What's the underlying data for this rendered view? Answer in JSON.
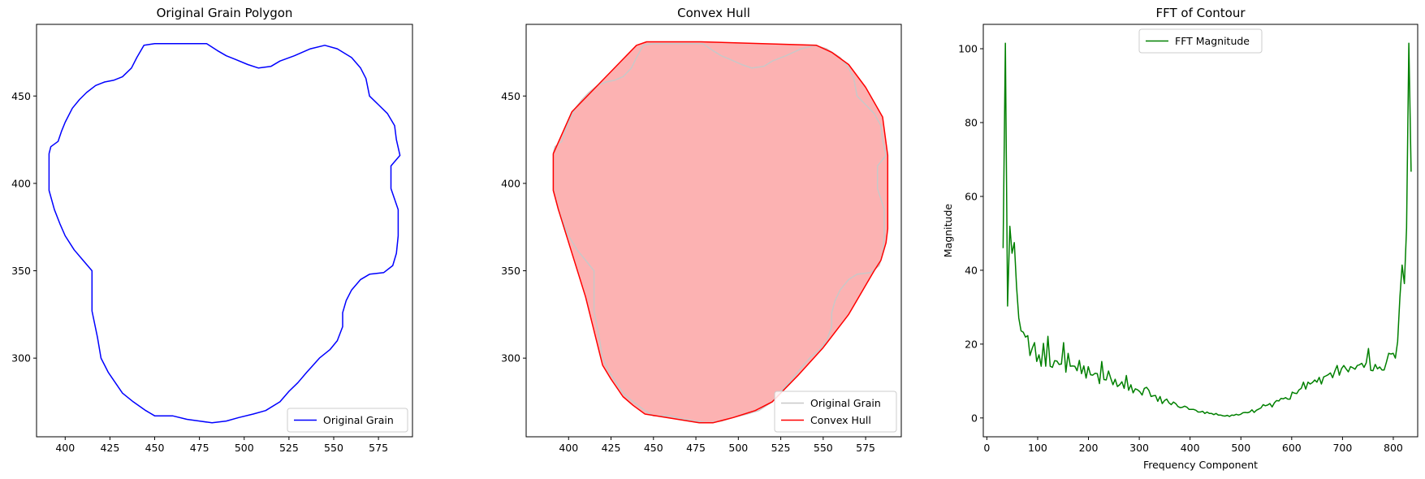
{
  "chart_data": [
    {
      "type": "line",
      "title": "Original Grain Polygon",
      "xlabel": "",
      "ylabel": "",
      "xlim": [
        384,
        594
      ],
      "ylim": [
        255,
        491
      ],
      "xticks": [
        400,
        425,
        450,
        475,
        500,
        525,
        550,
        575
      ],
      "yticks": [
        300,
        350,
        400,
        450
      ],
      "legend_position": "lower-right",
      "series": [
        {
          "name": "Original Grain",
          "color": "#0000ff",
          "points": [
            [
              391,
              417
            ],
            [
              391,
              396
            ],
            [
              394,
              385
            ],
            [
              397,
              377
            ],
            [
              400,
              370
            ],
            [
              405,
              362
            ],
            [
              410,
              356
            ],
            [
              415,
              350
            ],
            [
              415,
              327
            ],
            [
              418,
              312
            ],
            [
              420,
              300
            ],
            [
              424,
              292
            ],
            [
              428,
              286
            ],
            [
              432,
              280
            ],
            [
              438,
              275
            ],
            [
              445,
              270
            ],
            [
              450,
              267
            ],
            [
              460,
              267
            ],
            [
              468,
              265
            ],
            [
              475,
              264
            ],
            [
              482,
              263
            ],
            [
              490,
              264
            ],
            [
              497,
              266
            ],
            [
              505,
              268
            ],
            [
              512,
              270
            ],
            [
              520,
              275
            ],
            [
              525,
              281
            ],
            [
              530,
              286
            ],
            [
              535,
              292
            ],
            [
              542,
              300
            ],
            [
              548,
              305
            ],
            [
              552,
              310
            ],
            [
              555,
              318
            ],
            [
              555,
              326
            ],
            [
              557,
              333
            ],
            [
              560,
              339
            ],
            [
              565,
              345
            ],
            [
              570,
              348
            ],
            [
              578,
              349
            ],
            [
              583,
              353
            ],
            [
              585,
              360
            ],
            [
              586,
              370
            ],
            [
              586,
              385
            ],
            [
              582,
              397
            ],
            [
              582,
              410
            ],
            [
              587,
              416
            ],
            [
              585,
              425
            ],
            [
              584,
              433
            ],
            [
              580,
              440
            ],
            [
              575,
              445
            ],
            [
              570,
              450
            ],
            [
              568,
              460
            ],
            [
              565,
              466
            ],
            [
              560,
              472
            ],
            [
              552,
              477
            ],
            [
              545,
              479
            ],
            [
              537,
              477
            ],
            [
              528,
              473
            ],
            [
              520,
              470
            ],
            [
              515,
              467
            ],
            [
              508,
              466
            ],
            [
              502,
              468
            ],
            [
              495,
              471
            ],
            [
              490,
              473
            ],
            [
              485,
              476
            ],
            [
              479,
              480
            ],
            [
              470,
              480
            ],
            [
              460,
              480
            ],
            [
              450,
              480
            ],
            [
              444,
              479
            ],
            [
              440,
              472
            ],
            [
              437,
              466
            ],
            [
              432,
              461
            ],
            [
              427,
              459
            ],
            [
              422,
              458
            ],
            [
              417,
              456
            ],
            [
              412,
              452
            ],
            [
              408,
              448
            ],
            [
              404,
              443
            ],
            [
              400,
              435
            ],
            [
              398,
              430
            ],
            [
              396,
              424
            ],
            [
              392,
              421
            ],
            [
              391,
              417
            ]
          ]
        }
      ]
    },
    {
      "type": "line",
      "title": "Convex Hull",
      "xlabel": "",
      "ylabel": "",
      "xlim": [
        375,
        596
      ],
      "ylim": [
        255,
        491
      ],
      "xticks": [
        400,
        425,
        450,
        475,
        500,
        525,
        550,
        575
      ],
      "yticks": [
        300,
        350,
        400,
        450
      ],
      "legend_position": "lower-right",
      "hull_fill_color": "#fcb2b2",
      "series": [
        {
          "name": "Original Grain",
          "color": "#c8c8c8",
          "points": [
            [
              391,
              417
            ],
            [
              391,
              396
            ],
            [
              394,
              385
            ],
            [
              397,
              377
            ],
            [
              400,
              370
            ],
            [
              405,
              362
            ],
            [
              410,
              356
            ],
            [
              415,
              350
            ],
            [
              415,
              327
            ],
            [
              418,
              312
            ],
            [
              420,
              300
            ],
            [
              424,
              292
            ],
            [
              428,
              286
            ],
            [
              432,
              280
            ],
            [
              438,
              275
            ],
            [
              445,
              270
            ],
            [
              450,
              267
            ],
            [
              460,
              267
            ],
            [
              468,
              265
            ],
            [
              475,
              264
            ],
            [
              482,
              263
            ],
            [
              490,
              264
            ],
            [
              497,
              266
            ],
            [
              505,
              268
            ],
            [
              512,
              270
            ],
            [
              520,
              275
            ],
            [
              525,
              281
            ],
            [
              530,
              286
            ],
            [
              535,
              292
            ],
            [
              542,
              300
            ],
            [
              548,
              305
            ],
            [
              552,
              310
            ],
            [
              555,
              318
            ],
            [
              555,
              326
            ],
            [
              557,
              333
            ],
            [
              560,
              339
            ],
            [
              565,
              345
            ],
            [
              570,
              348
            ],
            [
              578,
              349
            ],
            [
              583,
              353
            ],
            [
              585,
              360
            ],
            [
              586,
              370
            ],
            [
              586,
              385
            ],
            [
              582,
              397
            ],
            [
              582,
              410
            ],
            [
              587,
              416
            ],
            [
              585,
              425
            ],
            [
              584,
              433
            ],
            [
              580,
              440
            ],
            [
              575,
              445
            ],
            [
              570,
              450
            ],
            [
              568,
              460
            ],
            [
              565,
              466
            ],
            [
              560,
              472
            ],
            [
              552,
              477
            ],
            [
              545,
              479
            ],
            [
              537,
              477
            ],
            [
              528,
              473
            ],
            [
              520,
              470
            ],
            [
              515,
              467
            ],
            [
              508,
              466
            ],
            [
              502,
              468
            ],
            [
              495,
              471
            ],
            [
              490,
              473
            ],
            [
              485,
              476
            ],
            [
              479,
              480
            ],
            [
              470,
              480
            ],
            [
              460,
              480
            ],
            [
              450,
              480
            ],
            [
              444,
              479
            ],
            [
              440,
              472
            ],
            [
              437,
              466
            ],
            [
              432,
              461
            ],
            [
              427,
              459
            ],
            [
              422,
              458
            ],
            [
              417,
              456
            ],
            [
              412,
              452
            ],
            [
              408,
              448
            ],
            [
              404,
              443
            ],
            [
              400,
              435
            ],
            [
              398,
              430
            ],
            [
              396,
              424
            ],
            [
              392,
              421
            ],
            [
              391,
              417
            ]
          ]
        },
        {
          "name": "Convex Hull",
          "color": "#ff0000",
          "points": [
            [
              391,
              417
            ],
            [
              391,
              396
            ],
            [
              394,
              385
            ],
            [
              410,
              335
            ],
            [
              420,
              296
            ],
            [
              425,
              288
            ],
            [
              432,
              278
            ],
            [
              438,
              273
            ],
            [
              445,
              268
            ],
            [
              477,
              263
            ],
            [
              485,
              263
            ],
            [
              497,
              266
            ],
            [
              510,
              270
            ],
            [
              520,
              275
            ],
            [
              535,
              290
            ],
            [
              550,
              306
            ],
            [
              565,
              325
            ],
            [
              580,
              350
            ],
            [
              584,
              356
            ],
            [
              587,
              366
            ],
            [
              588,
              374
            ],
            [
              588,
              416
            ],
            [
              585,
              438
            ],
            [
              575,
              455
            ],
            [
              565,
              468
            ],
            [
              555,
              475
            ],
            [
              546,
              479
            ],
            [
              478,
              481
            ],
            [
              446,
              481
            ],
            [
              440,
              479
            ],
            [
              412,
              451
            ],
            [
              402,
              441
            ],
            [
              391,
              417
            ]
          ]
        }
      ]
    },
    {
      "type": "line",
      "title": "FFT of Contour",
      "xlabel": "Frequency Component",
      "ylabel": "Magnitude",
      "xlim": [
        -7,
        848
      ],
      "ylim": [
        -5.1,
        106.6
      ],
      "xticks": [
        0,
        100,
        200,
        300,
        400,
        500,
        600,
        700,
        800
      ],
      "yticks": [
        0,
        20,
        40,
        60,
        80,
        100
      ],
      "legend_position": "upper-center",
      "series": [
        {
          "name": "FFT Magnitude",
          "color": "#008000",
          "x_range": [
            32,
            835
          ],
          "values": [
            46.0,
            101.5,
            30.3,
            51.9,
            44.6,
            47.5,
            35.5,
            27.1,
            23.6,
            23.2,
            21.9,
            22.3,
            16.9,
            18.9,
            20.4,
            15.3,
            17.1,
            14.0,
            20.2,
            14.0,
            22.1,
            14.0,
            13.7,
            15.5,
            15.4,
            14.5,
            14.6,
            20.4,
            12.4,
            17.5,
            14.0,
            14.1,
            14.0,
            12.8,
            15.6,
            12.0,
            14.1,
            10.8,
            13.9,
            11.7,
            11.6,
            12.1,
            12.0,
            9.3,
            15.3,
            10.4,
            10.3,
            12.7,
            10.8,
            9.0,
            10.5,
            8.5,
            9.0,
            9.8,
            8.0,
            11.5,
            7.5,
            9.0,
            6.8,
            7.9,
            7.6,
            7.1,
            6.2,
            8.0,
            8.3,
            7.5,
            5.8,
            6.0,
            6.1,
            4.5,
            5.8,
            3.9,
            4.7,
            5.1,
            4.1,
            3.6,
            4.3,
            3.9,
            3.1,
            2.8,
            2.9,
            3.2,
            2.9,
            2.3,
            2.3,
            2.3,
            2.1,
            1.6,
            1.6,
            1.8,
            1.2,
            1.6,
            1.2,
            1.2,
            0.9,
            1.2,
            0.8,
            0.8,
            0.6,
            0.5,
            0.7,
            0.4,
            0.8,
            0.7,
            1.0,
            0.8,
            1.0,
            1.4,
            1.5,
            1.4,
            1.6,
            2.2,
            1.5,
            2.1,
            2.4,
            2.7,
            3.6,
            3.3,
            3.5,
            3.9,
            3.0,
            4.1,
            4.7,
            4.6,
            5.3,
            5.2,
            5.5,
            5.1,
            5.1,
            7.0,
            6.7,
            6.6,
            7.6,
            8.0,
            9.7,
            7.8,
            9.7,
            9.2,
            9.6,
            10.3,
            9.7,
            11.0,
            9.2,
            11.1,
            11.4,
            11.7,
            12.2,
            10.9,
            12.7,
            14.2,
            11.6,
            13.4,
            14.2,
            13.3,
            12.5,
            13.9,
            13.6,
            13.2,
            14.2,
            14.4,
            14.8,
            13.7,
            14.9,
            18.8,
            12.9,
            12.8,
            14.5,
            13.3,
            13.8,
            13.0,
            13.0,
            15.1,
            17.5,
            17.3,
            17.5,
            16.2,
            20.7,
            32.7,
            41.4,
            36.4,
            51.4,
            101.5,
            66.7
          ],
          "peak_labels": []
        }
      ]
    }
  ]
}
